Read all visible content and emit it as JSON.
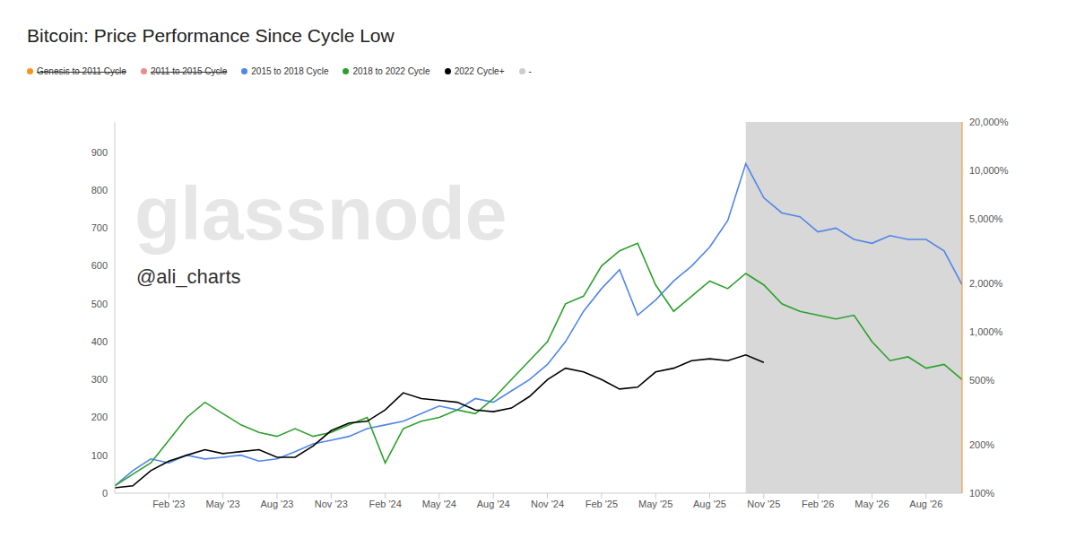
{
  "chart_data": {
    "type": "line",
    "title": "Bitcoin: Price Performance Since Cycle Low",
    "log": "y",
    "grid": false,
    "legend": "top-left",
    "annotations": [
      "glassnode",
      "@ali_charts"
    ],
    "highlight": {
      "x": [
        "2025-10",
        "2026-10"
      ]
    },
    "x": [
      "2022-11",
      "2022-12",
      "2023-01",
      "2023-02",
      "2023-03",
      "2023-04",
      "2023-05",
      "2023-06",
      "2023-07",
      "2023-08",
      "2023-09",
      "2023-10",
      "2023-11",
      "2023-12",
      "2024-01",
      "2024-02",
      "2024-03",
      "2024-04",
      "2024-05",
      "2024-06",
      "2024-07",
      "2024-08",
      "2024-09",
      "2024-10",
      "2024-11",
      "2024-12",
      "2025-01",
      "2025-02",
      "2025-03",
      "2025-04",
      "2025-05",
      "2025-06",
      "2025-07",
      "2025-08",
      "2025-09",
      "2025-10",
      "2025-11",
      "2025-12",
      "2026-01",
      "2026-02",
      "2026-03",
      "2026-04",
      "2026-05",
      "2026-06",
      "2026-07",
      "2026-08",
      "2026-09",
      "2026-10"
    ],
    "xlim": [
      "2022-11",
      "2026-10"
    ],
    "xticks": [
      {
        "value": "2023-02",
        "label": "Feb '23"
      },
      {
        "value": "2023-05",
        "label": "May '23"
      },
      {
        "value": "2023-08",
        "label": "Aug '23"
      },
      {
        "value": "2023-11",
        "label": "Nov '23"
      },
      {
        "value": "2024-02",
        "label": "Feb '24"
      },
      {
        "value": "2024-05",
        "label": "May '24"
      },
      {
        "value": "2024-08",
        "label": "Aug '24"
      },
      {
        "value": "2024-11",
        "label": "Nov '24"
      },
      {
        "value": "2025-02",
        "label": "Feb '25"
      },
      {
        "value": "2025-05",
        "label": "May '25"
      },
      {
        "value": "2025-08",
        "label": "Aug '25"
      },
      {
        "value": "2025-11",
        "label": "Nov '25"
      },
      {
        "value": "2026-02",
        "label": "Feb '26"
      },
      {
        "value": "2026-05",
        "label": "May '26"
      },
      {
        "value": "2026-08",
        "label": "Aug '26"
      }
    ],
    "ylim": [
      100,
      20000
    ],
    "yticks": [
      {
        "value": 100,
        "label": "100%"
      },
      {
        "value": 200,
        "label": "200%"
      },
      {
        "value": 500,
        "label": "500%"
      },
      {
        "value": 1000,
        "label": "1,000%"
      },
      {
        "value": 2000,
        "label": "2,000%"
      },
      {
        "value": 5000,
        "label": "5,000%"
      },
      {
        "value": 10000,
        "label": "10,000%"
      },
      {
        "value": 20000,
        "label": "20,000%"
      }
    ],
    "y2lim": [
      0,
      980
    ],
    "y2ticks": [
      0,
      100,
      200,
      300,
      400,
      500,
      600,
      700,
      800,
      900
    ],
    "series": [
      {
        "name": "Genesis to 2011 Cycle",
        "color": "#f7931a",
        "line_style": "none",
        "values": [
          null,
          null,
          null,
          null,
          null,
          null,
          null,
          null,
          null,
          null,
          null,
          null,
          null,
          null,
          null,
          null,
          null,
          null,
          null,
          null,
          null,
          null,
          null,
          null,
          null,
          null,
          null,
          null,
          null,
          null,
          null,
          null,
          null,
          null,
          null,
          null,
          null,
          null,
          null,
          null,
          null,
          null,
          null,
          null,
          null,
          null,
          null,
          null
        ]
      },
      {
        "name": "2011 to 2015 Cycle",
        "color": "#f08a8a",
        "line_style": "none",
        "values": [
          null,
          null,
          null,
          null,
          null,
          null,
          null,
          null,
          null,
          null,
          null,
          null,
          null,
          null,
          null,
          null,
          null,
          null,
          null,
          null,
          null,
          null,
          null,
          null,
          null,
          null,
          null,
          null,
          null,
          null,
          null,
          null,
          null,
          null,
          null,
          null,
          null,
          null,
          null,
          null,
          null,
          null,
          null,
          null,
          null,
          null,
          null,
          null
        ]
      },
      {
        "name": "2015 to 2018 Cycle",
        "color": "#4f86e8",
        "values": [
          111,
          138,
          163,
          154,
          172,
          163,
          167,
          172,
          158,
          163,
          181,
          202,
          213,
          225,
          251,
          265,
          279,
          311,
          347,
          328,
          386,
          366,
          430,
          506,
          628,
          869,
          1340,
          1853,
          2427,
          1268,
          1575,
          2065,
          2560,
          3357,
          4898,
          11020,
          6776,
          5458,
          5170,
          4166,
          4395,
          3740,
          3540,
          3945,
          3740,
          3740,
          3177,
          1954
        ]
      },
      {
        "name": "2018 to 2022 Cycle",
        "color": "#2ca02c",
        "values": [
          111,
          131,
          154,
          213,
          295,
          366,
          311,
          265,
          238,
          225,
          251,
          225,
          238,
          265,
          295,
          154,
          251,
          279,
          295,
          328,
          311,
          386,
          506,
          663,
          869,
          1492,
          1663,
          2560,
          3177,
          3540,
          1954,
          1340,
          1663,
          2065,
          1853,
          2300,
          1954,
          1492,
          1340,
          1268,
          1202,
          1268,
          869,
          663,
          700,
          595,
          628,
          506
        ]
      },
      {
        "name": "2022 Cycle+",
        "color": "#000000",
        "values": [
          108,
          111,
          138,
          158,
          172,
          186,
          176,
          181,
          186,
          167,
          167,
          196,
          244,
          272,
          279,
          328,
          419,
          386,
          376,
          366,
          328,
          320,
          337,
          397,
          506,
          595,
          564,
          506,
          442,
          454,
          564,
          595,
          663,
          681,
          663,
          719,
          645,
          null,
          null,
          null,
          null,
          null,
          null,
          null,
          null,
          null,
          null,
          null
        ]
      },
      {
        "name": "-",
        "color": "#cccccc",
        "values": [
          null,
          null,
          null,
          null,
          null,
          null,
          null,
          null,
          null,
          null,
          null,
          null,
          null,
          null,
          null,
          null,
          null,
          null,
          null,
          null,
          null,
          null,
          null,
          null,
          null,
          null,
          null,
          null,
          null,
          null,
          null,
          null,
          null,
          null,
          null,
          null,
          null,
          null,
          null,
          null,
          null,
          null,
          null,
          null,
          null,
          null,
          null,
          null
        ]
      }
    ]
  }
}
